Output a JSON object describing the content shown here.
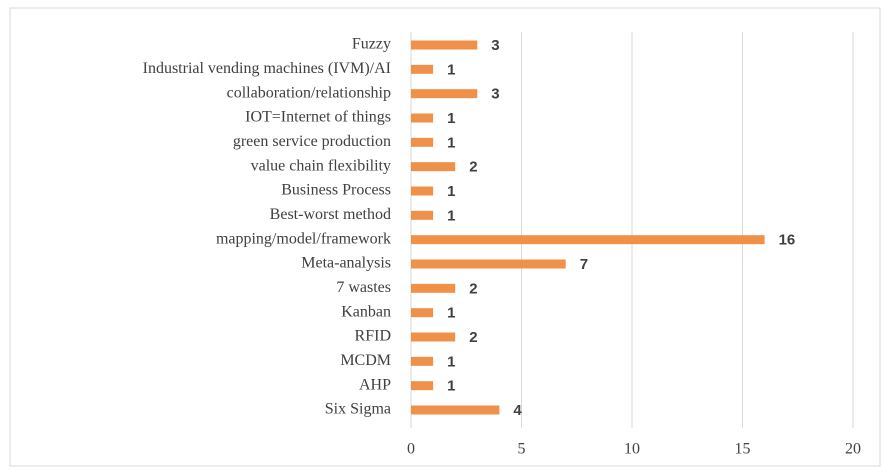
{
  "chart_data": {
    "type": "bar",
    "orientation": "horizontal",
    "categories": [
      "Fuzzy",
      "Industrial vending machines (IVM)/AI",
      "collaboration/relationship",
      "IOT=Internet of things",
      "green service production",
      "value chain flexibility",
      "Business Process",
      "Best-worst method",
      "mapping/model/framework",
      "Meta-analysis",
      "7 wastes",
      "Kanban",
      "RFID",
      "MCDM",
      "AHP",
      "Six Sigma"
    ],
    "values": [
      3,
      1,
      3,
      1,
      1,
      2,
      1,
      1,
      16,
      7,
      2,
      1,
      2,
      1,
      1,
      4
    ],
    "color": "#f0914a",
    "xlim": [
      0,
      20
    ],
    "xticks": [
      0,
      5,
      10,
      15,
      20
    ],
    "grid": true
  }
}
